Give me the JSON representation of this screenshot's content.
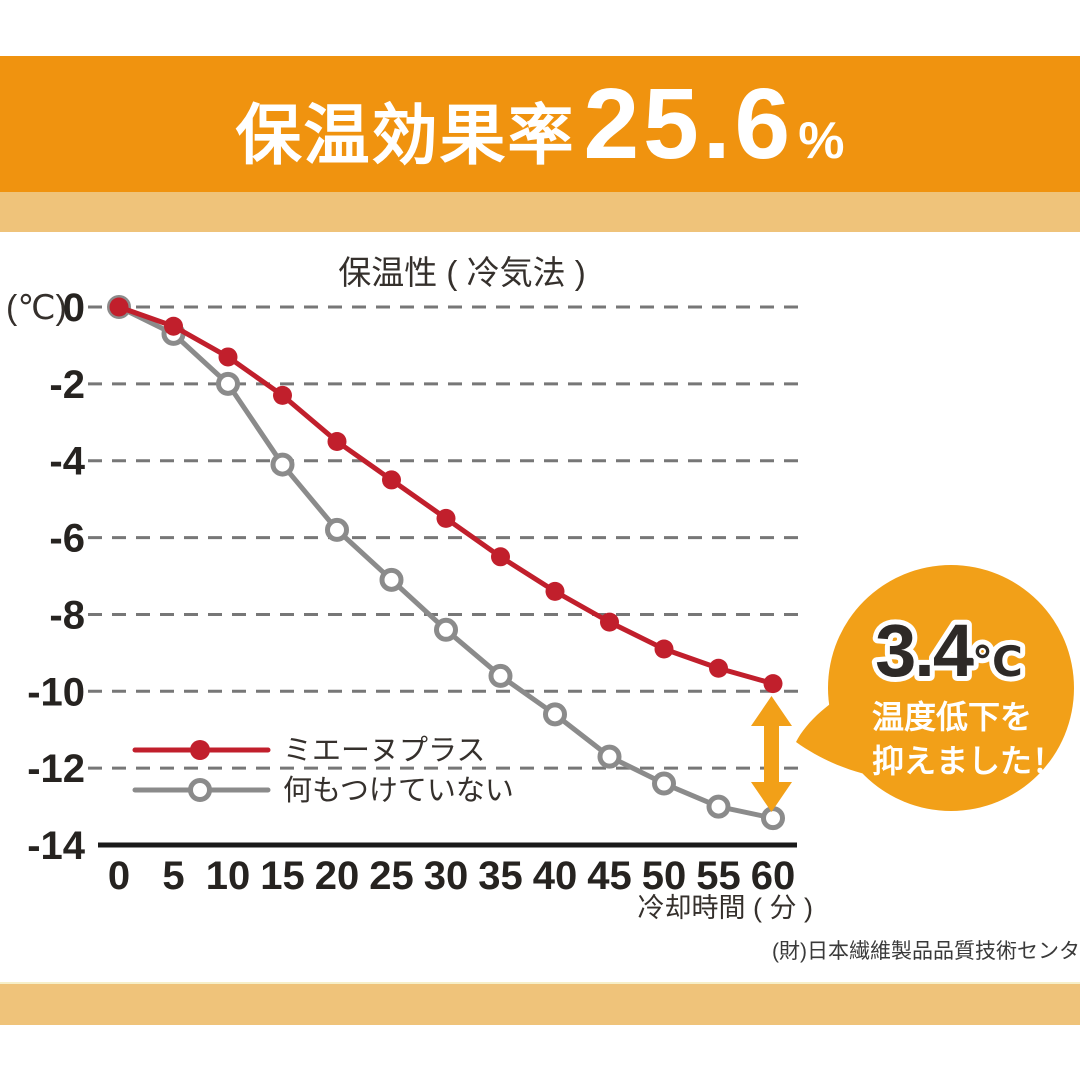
{
  "banner": {
    "label": "保温効果率",
    "value": "25.6",
    "unit": "%"
  },
  "colors": {
    "banner_orange": "#f0930f",
    "accent_stripe": "#efc37a",
    "callout_orange": "#f2a018",
    "series_red": "#c11f2c",
    "series_gray": "#8b8b8b",
    "axis_black": "#1a1a1a",
    "grid_gray": "#777777"
  },
  "chart_data": {
    "type": "line",
    "title": "保温性 ( 冷気法 )",
    "x": [
      0,
      5,
      10,
      15,
      20,
      25,
      30,
      35,
      40,
      45,
      50,
      55,
      60
    ],
    "xlabel": "冷却時間 ( 分 )",
    "ylabel": "(℃)",
    "ylim": [
      -14,
      0
    ],
    "yticks": [
      0,
      -2,
      -4,
      -6,
      -8,
      -10,
      -12,
      -14
    ],
    "grid": true,
    "legend_position": "lower-left",
    "series": [
      {
        "name": "ミエーヌプラス",
        "color": "#c11f2c",
        "marker": "filled-circle",
        "values": [
          0,
          -0.5,
          -1.3,
          -2.3,
          -3.5,
          -4.5,
          -5.5,
          -6.5,
          -7.4,
          -8.2,
          -8.9,
          -9.4,
          -9.8
        ]
      },
      {
        "name": "何もつけていない",
        "color": "#8b8b8b",
        "marker": "open-circle",
        "values": [
          0,
          -0.7,
          -2.0,
          -4.1,
          -5.8,
          -7.1,
          -8.4,
          -9.6,
          -10.6,
          -11.7,
          -12.4,
          -13.0,
          -13.3
        ]
      }
    ]
  },
  "callout": {
    "value": "3.4",
    "unit": "℃",
    "line1": "温度低下を",
    "line2": "抑えました！",
    "color": "#f2a018"
  },
  "source": "(財)日本繊維製品品質技術センター調べ"
}
